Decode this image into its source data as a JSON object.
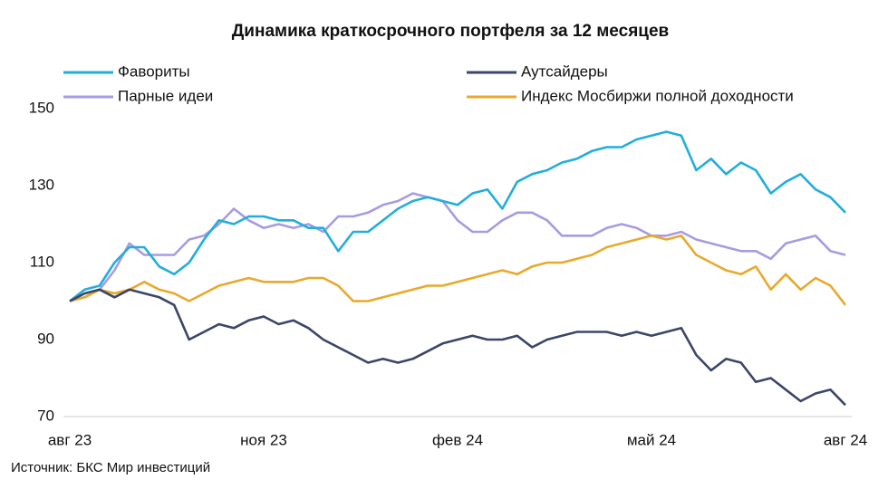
{
  "chart_data": {
    "type": "line",
    "title": "Динамика краткосрочного портфеля за 12 месяцев",
    "source": "Источник: БКС Мир инвестиций",
    "categories": [
      "авг 23",
      null,
      null,
      null,
      null,
      null,
      null,
      null,
      null,
      null,
      null,
      null,
      null,
      "ноя 23",
      null,
      null,
      null,
      null,
      null,
      null,
      null,
      null,
      null,
      null,
      null,
      null,
      "фев 24",
      null,
      null,
      null,
      null,
      null,
      null,
      null,
      null,
      null,
      null,
      null,
      null,
      "май 24",
      null,
      null,
      null,
      null,
      null,
      null,
      null,
      null,
      null,
      null,
      null,
      null,
      "авг 24"
    ],
    "ylim": [
      70,
      150
    ],
    "yticks": [
      70,
      90,
      110,
      130,
      150
    ],
    "grid": false,
    "series": [
      {
        "name": "Фавориты",
        "color": "#22aedb",
        "values": [
          100,
          103,
          104,
          110,
          114,
          114,
          109,
          107,
          110,
          116,
          121,
          120,
          122,
          122,
          121,
          121,
          119,
          119,
          113,
          118,
          118,
          121,
          124,
          126,
          127,
          126,
          125,
          128,
          129,
          124,
          131,
          133,
          134,
          136,
          137,
          139,
          140,
          140,
          142,
          143,
          144,
          143,
          134,
          137,
          133,
          136,
          134,
          128,
          131,
          133,
          129,
          127,
          123
        ]
      },
      {
        "name": "Аутсайдеры",
        "color": "#3b4668",
        "values": [
          100,
          102,
          103,
          101,
          103,
          102,
          101,
          99,
          90,
          92,
          94,
          93,
          95,
          96,
          94,
          95,
          93,
          90,
          88,
          86,
          84,
          85,
          84,
          85,
          87,
          89,
          90,
          91,
          90,
          90,
          91,
          88,
          90,
          91,
          92,
          92,
          92,
          91,
          92,
          91,
          92,
          93,
          86,
          82,
          85,
          84,
          79,
          80,
          77,
          74,
          76,
          77,
          73
        ]
      },
      {
        "name": "Парные идеи",
        "color": "#a99be0",
        "values": [
          100,
          101,
          103,
          108,
          115,
          112,
          112,
          112,
          116,
          117,
          120,
          124,
          121,
          119,
          120,
          119,
          120,
          118,
          122,
          122,
          123,
          125,
          126,
          128,
          127,
          126,
          121,
          118,
          118,
          121,
          123,
          123,
          121,
          117,
          117,
          117,
          119,
          120,
          119,
          117,
          117,
          118,
          116,
          115,
          114,
          113,
          113,
          111,
          115,
          116,
          117,
          113,
          112
        ]
      },
      {
        "name": "Индекс Мосбиржи полной доходности",
        "color": "#e8a92c",
        "values": [
          100,
          101,
          103,
          102,
          103,
          105,
          103,
          102,
          100,
          102,
          104,
          105,
          106,
          105,
          105,
          105,
          106,
          106,
          104,
          100,
          100,
          101,
          102,
          103,
          104,
          104,
          105,
          106,
          107,
          108,
          107,
          109,
          110,
          110,
          111,
          112,
          114,
          115,
          116,
          117,
          116,
          117,
          112,
          110,
          108,
          107,
          109,
          103,
          107,
          103,
          106,
          104,
          99
        ]
      }
    ]
  }
}
